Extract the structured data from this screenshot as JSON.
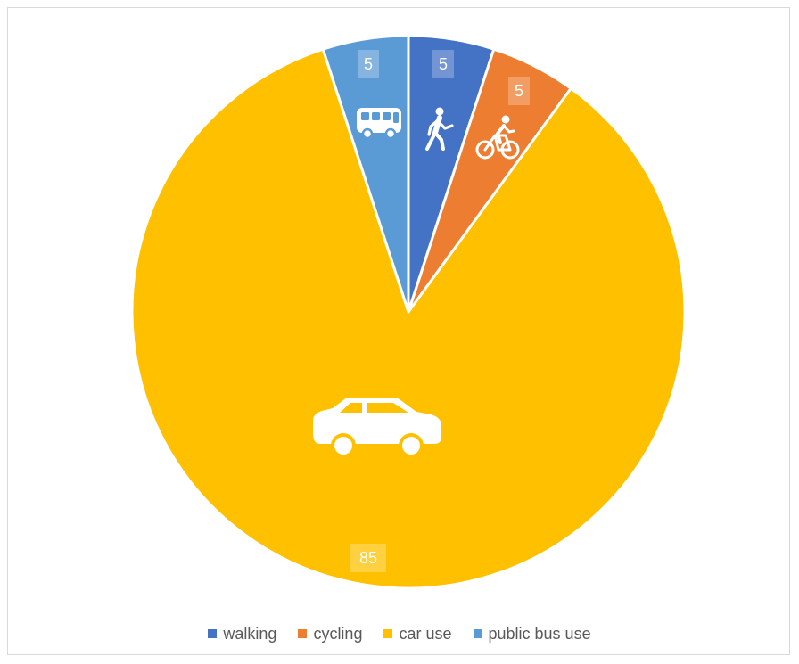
{
  "chart_data": {
    "type": "pie",
    "title": "",
    "series": [
      {
        "name": "walking",
        "value": 5,
        "color": "#4472C4",
        "icon": "walking-person-icon"
      },
      {
        "name": "cycling",
        "value": 5,
        "color": "#ED7D31",
        "icon": "cyclist-icon"
      },
      {
        "name": "car use",
        "value": 85,
        "color": "#FFC000",
        "icon": "car-icon"
      },
      {
        "name": "public bus use",
        "value": 5,
        "color": "#5B9BD5",
        "icon": "bus-icon"
      }
    ],
    "start_angle_deg": 0,
    "direction": "clockwise",
    "legend_position": "bottom",
    "data_labels": true
  },
  "legend": {
    "items": [
      {
        "label": "walking",
        "color": "#4472C4"
      },
      {
        "label": "cycling",
        "color": "#ED7D31"
      },
      {
        "label": "car use",
        "color": "#FFC000"
      },
      {
        "label": "public bus use",
        "color": "#5B9BD5"
      }
    ]
  }
}
